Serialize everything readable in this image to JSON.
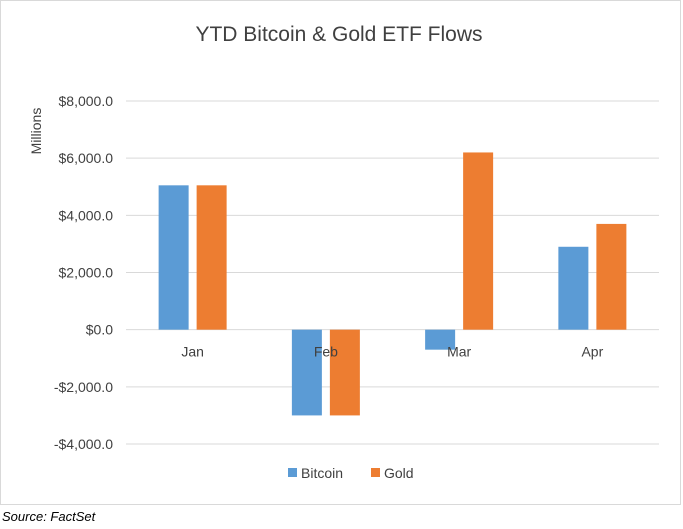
{
  "chart_data": {
    "type": "bar",
    "title": "YTD Bitcoin & Gold ETF Flows",
    "xlabel": "",
    "ylabel": "Millions",
    "categories": [
      "Jan",
      "Feb",
      "Mar",
      "Apr"
    ],
    "series": [
      {
        "name": "Bitcoin",
        "color": "#5b9bd5",
        "values": [
          5050,
          -3000,
          -700,
          2900
        ]
      },
      {
        "name": "Gold",
        "color": "#ed7d31",
        "values": [
          5050,
          -3000,
          6200,
          3700
        ]
      }
    ],
    "ylim": [
      -4000,
      8000
    ],
    "yticks": [
      -4000,
      -2000,
      0,
      2000,
      4000,
      6000,
      8000
    ],
    "ytick_labels": [
      "-$4,000.0",
      "-$2,000.0",
      "$0.0",
      "$2,000.0",
      "$4,000.0",
      "$6,000.0",
      "$8,000.0"
    ],
    "grid": true,
    "legend_position": "bottom"
  },
  "source": "Source: FactSet"
}
